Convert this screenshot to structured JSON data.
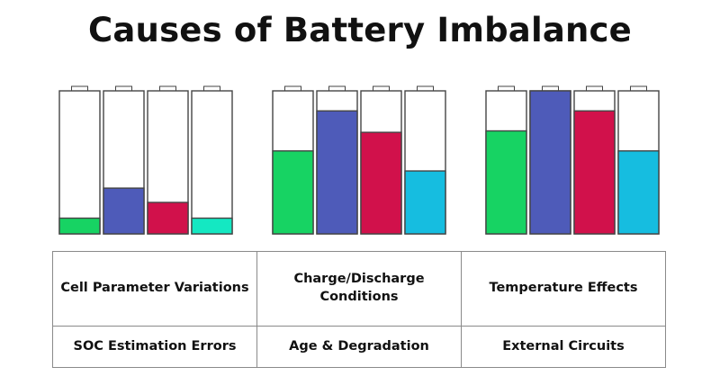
{
  "title": "Causes of Battery Imbalance",
  "battery_groups": [
    {
      "cells": [
        {
          "level": 0.11,
          "color": "#17d363"
        },
        {
          "level": 0.32,
          "color": "#4e5bb9"
        },
        {
          "level": 0.22,
          "color": "#d1114b"
        },
        {
          "level": 0.11,
          "color": "#14e8c2"
        }
      ]
    },
    {
      "cells": [
        {
          "level": 0.58,
          "color": "#17d363"
        },
        {
          "level": 0.86,
          "color": "#4e5bb9"
        },
        {
          "level": 0.71,
          "color": "#d1114b"
        },
        {
          "level": 0.44,
          "color": "#16bde0"
        }
      ]
    },
    {
      "cells": [
        {
          "level": 0.72,
          "color": "#17d363"
        },
        {
          "level": 1.0,
          "color": "#4e5bb9"
        },
        {
          "level": 0.86,
          "color": "#d1114b"
        },
        {
          "level": 0.58,
          "color": "#16bde0"
        }
      ]
    }
  ],
  "causes": [
    [
      "Cell Parameter Variations",
      "Charge/Discharge Conditions",
      "Temperature Effects"
    ],
    [
      "SOC Estimation Errors",
      "Age & Degradation",
      "External Circuits"
    ]
  ]
}
